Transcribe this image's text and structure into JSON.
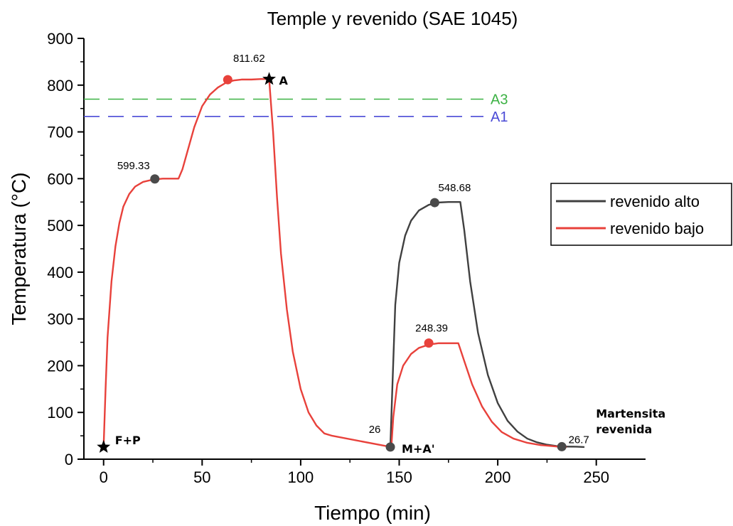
{
  "chart_data": {
    "type": "line",
    "title": "Temple y revenido (SAE 1045)",
    "xlabel": "Tiempo (min)",
    "ylabel": "Temperatura (°C)",
    "xlim": [
      -10,
      275
    ],
    "ylim": [
      0,
      900
    ],
    "x_ticks": [
      0,
      50,
      100,
      150,
      200,
      250
    ],
    "y_ticks": [
      0,
      100,
      200,
      300,
      400,
      500,
      600,
      700,
      800,
      900
    ],
    "x_tick_labels": [
      "0",
      "50",
      "100",
      "150",
      "200",
      "250"
    ],
    "y_tick_labels": [
      "0",
      "100",
      "200",
      "300",
      "400",
      "500",
      "600",
      "700",
      "800",
      "900"
    ],
    "grid": false,
    "legend_position": "right",
    "series": [
      {
        "name": "revenido alto",
        "color": "#404040",
        "x": [
          145.5,
          146.5,
          148,
          150,
          153,
          156,
          160,
          165,
          170,
          175,
          181,
          183,
          186,
          190,
          195,
          200,
          205,
          210,
          215,
          220,
          225,
          230,
          235,
          240,
          244
        ],
        "y": [
          26,
          150,
          330,
          420,
          478,
          510,
          532,
          544,
          549,
          550,
          550,
          490,
          380,
          270,
          180,
          120,
          82,
          59,
          44,
          36,
          31,
          28,
          27,
          26.7,
          26
        ]
      },
      {
        "name": "revenido bajo",
        "color": "#e8413b",
        "x": [
          0,
          1,
          2,
          4,
          6,
          8,
          10,
          13,
          16,
          20,
          25,
          30,
          38,
          40,
          43,
          46,
          50,
          54,
          58,
          62,
          66,
          70,
          75,
          80,
          84,
          86,
          88,
          90,
          93,
          96,
          100,
          104,
          108,
          112,
          116,
          146,
          147,
          149,
          152,
          156,
          160,
          165,
          170,
          180,
          183,
          187,
          192,
          197,
          202,
          208,
          215,
          222,
          230,
          235
        ],
        "y": [
          26,
          150,
          260,
          380,
          455,
          505,
          540,
          567,
          583,
          593,
          598,
          600,
          600,
          620,
          665,
          710,
          755,
          780,
          795,
          805,
          810,
          812,
          812,
          813,
          813,
          700,
          560,
          440,
          320,
          230,
          150,
          100,
          72,
          55,
          50,
          26,
          90,
          160,
          200,
          225,
          238,
          245,
          248,
          248,
          210,
          160,
          113,
          80,
          58,
          44,
          35,
          30,
          27,
          26
        ]
      }
    ],
    "reference_lines": [
      {
        "label": "A3",
        "y": 770,
        "color": "#3bb143"
      },
      {
        "label": "A1",
        "y": 733,
        "color": "#4a4ad6"
      }
    ],
    "markers": [
      {
        "x": 26,
        "y": 599.33,
        "label": "599.33",
        "color": "#4a4a4a",
        "shape": "circle"
      },
      {
        "x": 63,
        "y": 811.62,
        "label": "811.62",
        "color": "#e8413b",
        "shape": "circle"
      },
      {
        "x": 168,
        "y": 548.68,
        "label": "548.68",
        "color": "#4a4a4a",
        "shape": "circle"
      },
      {
        "x": 165,
        "y": 248.39,
        "label": "248.39",
        "color": "#e8413b",
        "shape": "circle"
      },
      {
        "x": 145.5,
        "y": 26,
        "label": "26",
        "color": "#4a4a4a",
        "shape": "circle"
      },
      {
        "x": 232.5,
        "y": 26.7,
        "label": "26.7",
        "color": "#4a4a4a",
        "shape": "circle"
      },
      {
        "x": 0,
        "y": 26,
        "label": "",
        "color": "#000000",
        "shape": "star"
      },
      {
        "x": 84,
        "y": 813,
        "label": "",
        "color": "#000000",
        "shape": "star"
      }
    ],
    "annotations": [
      {
        "text": "F+P",
        "x": 0,
        "y": 26
      },
      {
        "text": "A",
        "x": 84,
        "y": 813
      },
      {
        "text": "M+A'",
        "x": 145.5,
        "y": 26
      },
      {
        "text": "Martensita",
        "x": 232.5,
        "y": 26.7
      },
      {
        "text": "revenida",
        "x": 232.5,
        "y": 26.7
      }
    ]
  }
}
